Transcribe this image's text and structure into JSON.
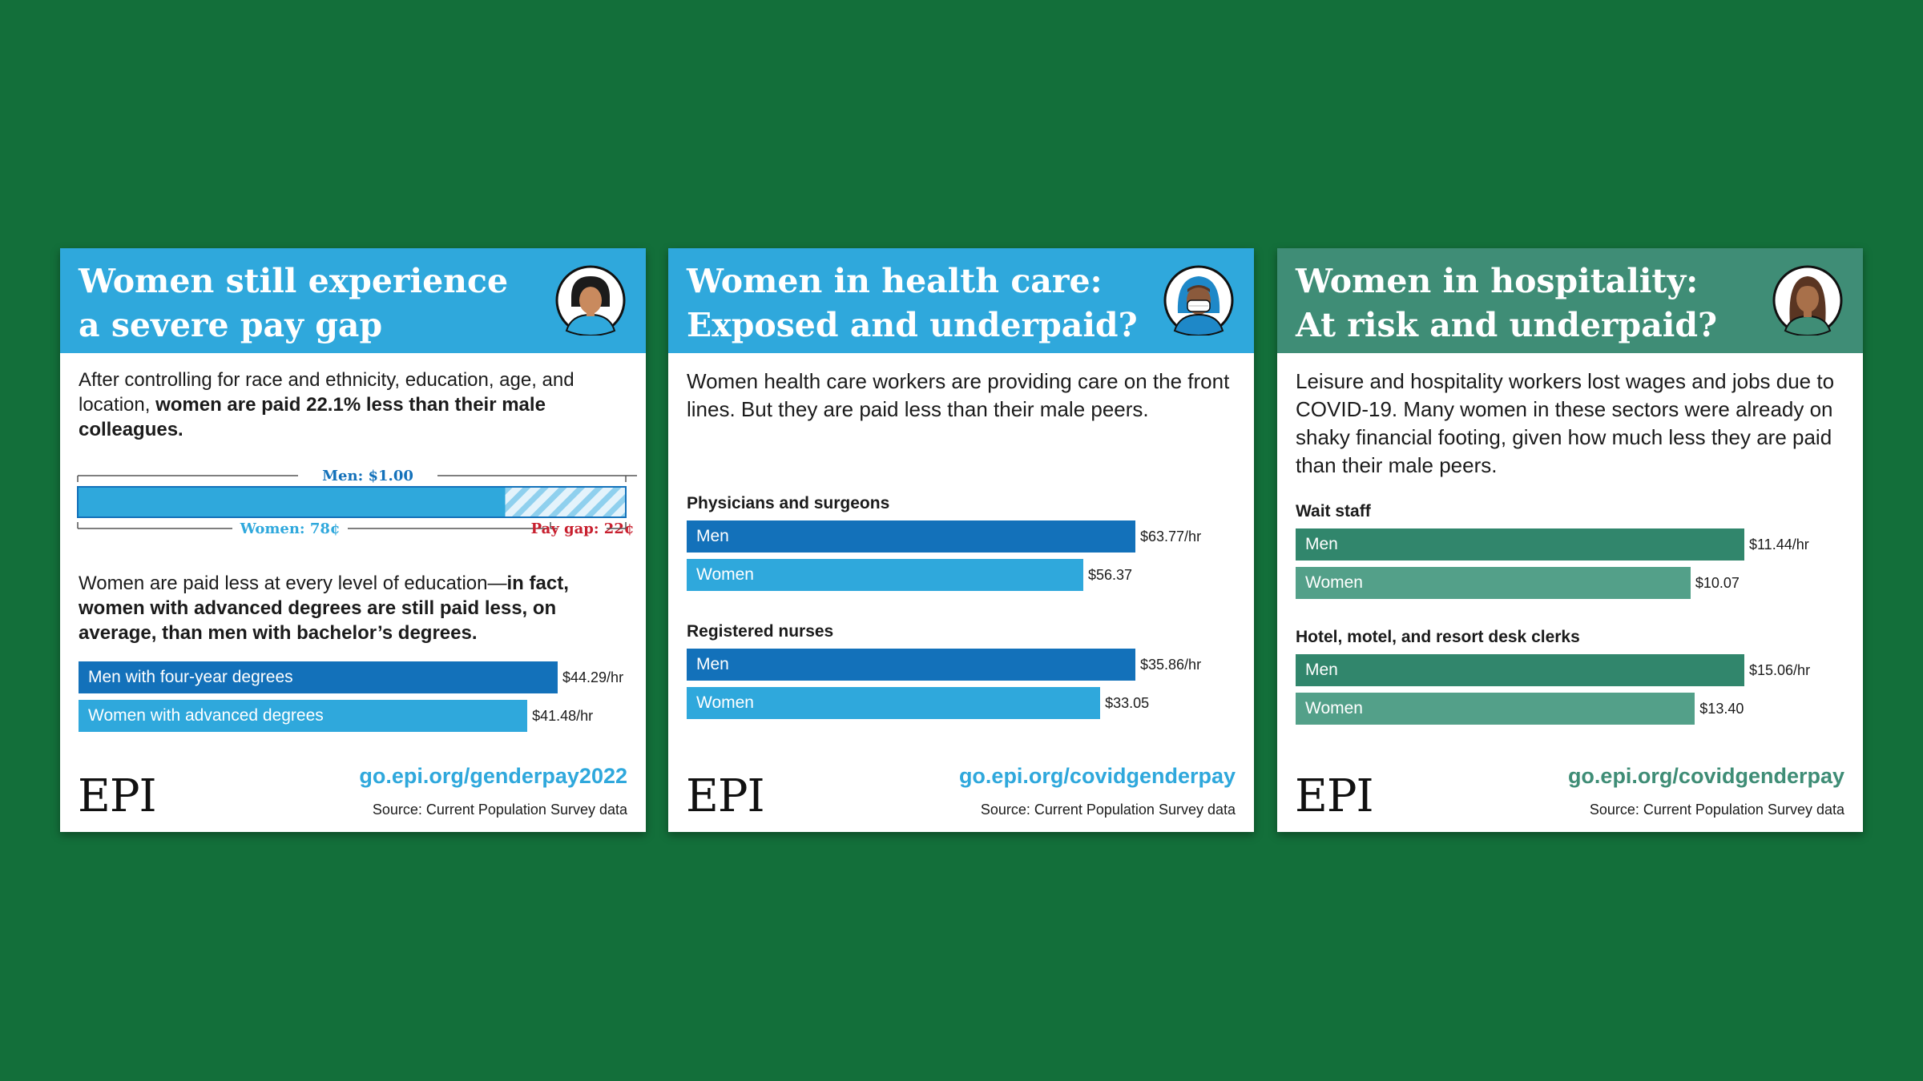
{
  "colors": {
    "background": "#136f3a",
    "blue_header": "#2fa8dc",
    "green_header": "#3f8d76",
    "dark_blue_bar": "#1371ba",
    "light_blue_bar": "#2fa8dc",
    "dark_green_bar": "#31866c",
    "light_green_bar": "#53a089",
    "gap_red": "#c8202f",
    "url_blue": "#2fa8dc",
    "url_green": "#3f8d76"
  },
  "cards": [
    {
      "title_line1": "Women still experience",
      "title_line2": "a severe pay gap",
      "avatar_icon": "woman-portrait-icon",
      "intro_plain1": "After controlling for race and ethnicity, education, age, and location, ",
      "intro_bold1": "women are paid 22.1% less than their male colleagues.",
      "gap_men_label": "Men: $1.00",
      "gap_women_label": "Women: 78¢",
      "gap_gap_label": "Pay gap: 22¢",
      "edu_plain": "Women are paid less at every level of education—",
      "edu_bold": "in fact, women with advanced degrees are still paid less, on average, than men with bachelor’s degrees.",
      "logo": "EPI",
      "url": "go.epi.org/genderpay2022",
      "source": "Source: Current Population Survey data"
    },
    {
      "title_line1": "Women in health care:",
      "title_line2": "Exposed and underpaid?",
      "avatar_icon": "masked-health-worker-icon",
      "intro": "Women health care workers are providing care on the front lines. But they are paid less than their male peers.",
      "logo": "EPI",
      "url": "go.epi.org/covidgenderpay",
      "source": "Source: Current Population Survey data"
    },
    {
      "title_line1": "Women in hospitality:",
      "title_line2": "At risk and underpaid?",
      "avatar_icon": "woman-long-hair-icon",
      "intro": "Leisure and hospitality workers lost wages and jobs due to COVID-19. Many women in these sectors were already on shaky financial footing, given how much less they are paid than their male peers.",
      "logo": "EPI",
      "url": "go.epi.org/covidgenderpay",
      "source": "Source: Current Population Survey data"
    }
  ],
  "chart_data": [
    {
      "type": "bar",
      "orientation": "horizontal",
      "title": "",
      "categories": [
        "Men",
        "Women"
      ],
      "values": [
        1.0,
        0.78
      ],
      "gap": 0.22,
      "labels": [
        "Men: $1.00",
        "Women: 78¢",
        "Pay gap: 22¢"
      ]
    },
    {
      "type": "bar",
      "orientation": "horizontal",
      "title": "",
      "categories": [
        "Men with four-year degrees",
        "Women with advanced degrees"
      ],
      "values": [
        44.29,
        41.48
      ],
      "value_labels": [
        "$44.29/hr",
        "$41.48/hr"
      ]
    },
    {
      "type": "bar",
      "orientation": "horizontal",
      "groups": [
        {
          "name": "Physicians and surgeons",
          "categories": [
            "Men",
            "Women"
          ],
          "values": [
            63.77,
            56.37
          ],
          "value_labels": [
            "$63.77/hr",
            "$56.37"
          ]
        },
        {
          "name": "Registered nurses",
          "categories": [
            "Men",
            "Women"
          ],
          "values": [
            35.86,
            33.05
          ],
          "value_labels": [
            "$35.86/hr",
            "$33.05"
          ]
        }
      ]
    },
    {
      "type": "bar",
      "orientation": "horizontal",
      "groups": [
        {
          "name": "Wait staff",
          "categories": [
            "Men",
            "Women"
          ],
          "values": [
            11.44,
            10.07
          ],
          "value_labels": [
            "$11.44/hr",
            "$10.07"
          ]
        },
        {
          "name": "Hotel, motel, and resort desk clerks",
          "categories": [
            "Men",
            "Women"
          ],
          "values": [
            15.06,
            13.4
          ],
          "value_labels": [
            "$15.06/hr",
            "$13.40"
          ]
        }
      ]
    }
  ]
}
